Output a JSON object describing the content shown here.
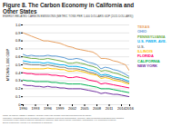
{
  "chart_data": {
    "type": "line",
    "title": "Figure 8. The Carbon Economy in California and\nOther States",
    "subtitle": "ENERGY-RELATED CARBON EMISSIONS (METRIC TONS PER 1,000 DOLLARS GDP (2015 DOLLARS))",
    "ylabel": "MTONS/1,000 GDP",
    "note": "NOTE: TO USE OF FEDERAL ENERGY INFORMATION FOR PRICES. Note that projections from the Energy\nInformation Administration and its forecast for carbon emissions (Project Not Contemplated). Therefore, data representativeness differs from estimates\nrepresented in other charts of historical estimates for California. State Source: Energy Information Administration, U.S. Department of Energy,\nBureau of Economic Analysis, U.S. Department of Commerce.",
    "x": [
      1990,
      1991,
      1992,
      1993,
      1994,
      1995,
      1996,
      1997,
      1998,
      1999,
      2000,
      2001,
      2002,
      2003,
      2004,
      2005,
      2006,
      2007,
      2008,
      2009,
      2010,
      2011,
      2012,
      2013,
      2014,
      2015,
      2016
    ],
    "series": [
      {
        "name": "TEXAS",
        "color": "#e8a060",
        "values": [
          0.9,
          0.88,
          0.86,
          0.84,
          0.82,
          0.8,
          0.8,
          0.79,
          0.78,
          0.77,
          0.75,
          0.73,
          0.72,
          0.7,
          0.69,
          0.68,
          0.67,
          0.66,
          0.63,
          0.58,
          0.58,
          0.57,
          0.55,
          0.54,
          0.52,
          0.5,
          0.42
        ]
      },
      {
        "name": "OHIO",
        "color": "#5b9bd5",
        "values": [
          0.63,
          0.61,
          0.62,
          0.61,
          0.61,
          0.61,
          0.62,
          0.61,
          0.61,
          0.6,
          0.59,
          0.57,
          0.57,
          0.58,
          0.57,
          0.55,
          0.53,
          0.52,
          0.5,
          0.45,
          0.47,
          0.46,
          0.44,
          0.43,
          0.41,
          0.38,
          0.35
        ]
      },
      {
        "name": "PENNSYLVANIA",
        "color": "#70ad47",
        "values": [
          0.6,
          0.59,
          0.58,
          0.58,
          0.57,
          0.57,
          0.58,
          0.57,
          0.56,
          0.55,
          0.54,
          0.52,
          0.52,
          0.53,
          0.52,
          0.51,
          0.49,
          0.48,
          0.46,
          0.42,
          0.43,
          0.42,
          0.4,
          0.39,
          0.37,
          0.35,
          0.33
        ]
      },
      {
        "name": "U.S. FWER. AVE.",
        "color": "#00b0f0",
        "values": [
          0.55,
          0.54,
          0.53,
          0.53,
          0.53,
          0.52,
          0.53,
          0.52,
          0.51,
          0.5,
          0.5,
          0.48,
          0.48,
          0.48,
          0.47,
          0.46,
          0.44,
          0.43,
          0.41,
          0.37,
          0.38,
          0.37,
          0.35,
          0.34,
          0.33,
          0.31,
          0.29
        ]
      },
      {
        "name": "U.S.",
        "color": "#808080",
        "values": [
          0.52,
          0.51,
          0.5,
          0.5,
          0.5,
          0.49,
          0.5,
          0.49,
          0.48,
          0.47,
          0.47,
          0.45,
          0.45,
          0.45,
          0.44,
          0.43,
          0.41,
          0.4,
          0.38,
          0.35,
          0.36,
          0.35,
          0.33,
          0.32,
          0.31,
          0.29,
          0.27
        ]
      },
      {
        "name": "ILLINOIS",
        "color": "#ffc000",
        "values": [
          0.46,
          0.45,
          0.45,
          0.45,
          0.45,
          0.45,
          0.46,
          0.45,
          0.45,
          0.44,
          0.44,
          0.42,
          0.42,
          0.43,
          0.42,
          0.41,
          0.39,
          0.38,
          0.37,
          0.33,
          0.34,
          0.33,
          0.31,
          0.3,
          0.29,
          0.27,
          0.26
        ]
      },
      {
        "name": "FLORIDA",
        "color": "#ff0066",
        "values": [
          0.4,
          0.39,
          0.39,
          0.38,
          0.38,
          0.38,
          0.38,
          0.37,
          0.37,
          0.36,
          0.36,
          0.34,
          0.34,
          0.35,
          0.34,
          0.33,
          0.31,
          0.3,
          0.29,
          0.26,
          0.27,
          0.26,
          0.25,
          0.24,
          0.23,
          0.22,
          0.21
        ]
      },
      {
        "name": "CALIFORNIA",
        "color": "#00b050",
        "values": [
          0.31,
          0.3,
          0.3,
          0.29,
          0.29,
          0.29,
          0.29,
          0.28,
          0.28,
          0.27,
          0.27,
          0.26,
          0.26,
          0.26,
          0.26,
          0.25,
          0.24,
          0.23,
          0.22,
          0.2,
          0.2,
          0.2,
          0.19,
          0.18,
          0.17,
          0.16,
          0.15
        ]
      },
      {
        "name": "NEW YORK",
        "color": "#7030a0",
        "values": [
          0.25,
          0.24,
          0.24,
          0.23,
          0.23,
          0.22,
          0.23,
          0.22,
          0.22,
          0.21,
          0.21,
          0.2,
          0.2,
          0.2,
          0.2,
          0.19,
          0.18,
          0.17,
          0.16,
          0.14,
          0.15,
          0.14,
          0.13,
          0.13,
          0.12,
          0.11,
          0.1
        ]
      }
    ],
    "xlim": [
      1990,
      2016
    ],
    "xticks": [
      1990,
      1993,
      1996,
      1999,
      2002,
      2005,
      2008,
      2011,
      2014,
      2016
    ],
    "ylim": [
      0,
      1.0
    ],
    "yticks": [
      0,
      0.1,
      0.2,
      0.3,
      0.4,
      0.5,
      0.6,
      0.7,
      0.8,
      0.9,
      {
        "value": 1.0,
        "label": "1.0"
      }
    ],
    "grid": true,
    "legend": "right"
  }
}
